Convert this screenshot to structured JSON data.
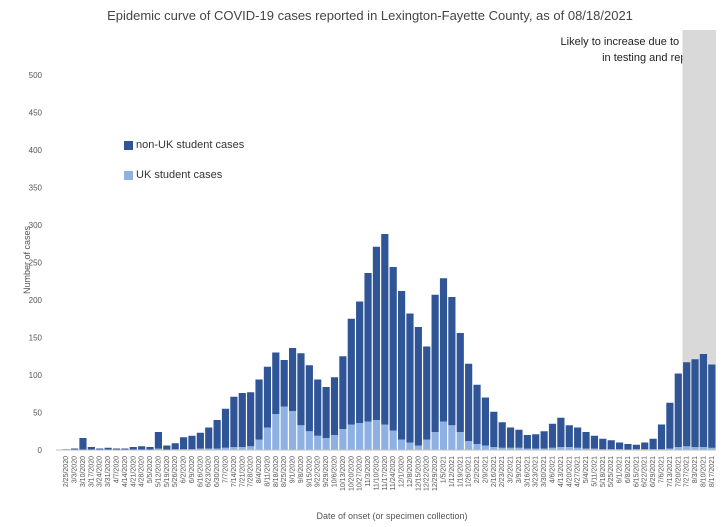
{
  "chart_data": {
    "type": "bar",
    "title": "Epidemic curve of COVID-19 cases reported in Lexington-Fayette County, as of 08/18/2021",
    "xlabel": "Date of onset (or specimen collection)",
    "ylabel": "Number of cases",
    "ylim": [
      0,
      500
    ],
    "yticks": [
      0,
      50,
      100,
      150,
      200,
      250,
      300,
      350,
      400,
      450,
      500
    ],
    "stacked": true,
    "legend_position": "upper-left",
    "annotation": "Likely to increase due to delays in testing and reporting",
    "shaded_period": [
      "7/27/2021",
      "8/17/2021"
    ],
    "x_tick_labels": [
      "2/25/2020",
      "3/3/2020",
      "3/10/2020",
      "3/17/2020",
      "3/24/2020",
      "3/31/2020",
      "4/7/2020",
      "4/14/2020",
      "4/21/2020",
      "4/28/2020",
      "5/5/2020",
      "5/12/2020",
      "5/19/2020",
      "5/26/2020",
      "6/2/2020",
      "6/9/2020",
      "6/16/2020",
      "6/23/2020",
      "6/30/2020",
      "7/7/2020",
      "7/14/2020",
      "7/21/2020",
      "7/28/2020",
      "8/4/2020",
      "8/11/2020",
      "8/18/2020",
      "8/25/2020",
      "9/1/2020",
      "9/8/2020",
      "9/15/2020",
      "9/22/2020",
      "9/29/2020",
      "10/6/2020",
      "10/13/2020",
      "10/20/2020",
      "10/27/2020",
      "11/3/2020",
      "11/10/2020",
      "11/17/2020",
      "11/24/2020",
      "12/1/2020",
      "12/8/2020",
      "12/15/2020",
      "12/22/2020",
      "12/29/2020",
      "1/5/2021",
      "1/12/2021",
      "1/19/2021",
      "1/26/2021",
      "2/2/2021",
      "2/9/2021",
      "2/16/2021",
      "2/23/2021",
      "3/2/2021",
      "3/9/2021",
      "3/16/2021",
      "3/23/2021",
      "3/30/2021",
      "4/6/2021",
      "4/13/2021",
      "4/20/2021",
      "4/27/2021",
      "5/4/2021",
      "5/11/2021",
      "5/18/2021",
      "5/25/2021",
      "6/1/2021",
      "6/8/2021",
      "6/15/2021",
      "6/22/2021",
      "6/29/2021",
      "7/6/2021",
      "7/13/2021",
      "7/20/2021",
      "7/27/2021",
      "8/3/2021",
      "8/10/2021",
      "8/17/2021"
    ],
    "x_week_starts": [
      "2/25/2020",
      "3/3/2020",
      "3/10/2020",
      "3/17/2020",
      "3/24/2020",
      "3/31/2020",
      "4/7/2020",
      "4/14/2020",
      "4/21/2020",
      "4/28/2020",
      "5/5/2020",
      "5/12/2020",
      "5/19/2020",
      "5/26/2020",
      "6/2/2020",
      "6/9/2020",
      "6/16/2020",
      "6/23/2020",
      "6/30/2020",
      "7/7/2020",
      "7/14/2020",
      "7/21/2020",
      "7/28/2020",
      "8/4/2020",
      "8/11/2020",
      "8/18/2020",
      "8/25/2020",
      "9/1/2020",
      "9/8/2020",
      "9/15/2020",
      "9/22/2020",
      "9/29/2020",
      "10/6/2020",
      "10/13/2020",
      "10/20/2020",
      "10/27/2020",
      "11/3/2020",
      "11/10/2020",
      "11/17/2020",
      "11/24/2020",
      "12/1/2020",
      "12/8/2020",
      "12/15/2020",
      "12/22/2020",
      "12/29/2020",
      "1/5/2021",
      "1/12/2021",
      "1/19/2021",
      "1/26/2021",
      "2/2/2021",
      "2/9/2021",
      "2/16/2021",
      "2/23/2021",
      "3/2/2021",
      "3/9/2021",
      "3/16/2021",
      "3/23/2021",
      "3/30/2021",
      "4/6/2021",
      "4/13/2021",
      "4/20/2021",
      "4/27/2021",
      "5/4/2021",
      "5/11/2021",
      "5/18/2021",
      "5/25/2021",
      "6/1/2021",
      "6/8/2021",
      "6/15/2021",
      "6/22/2021",
      "6/29/2021",
      "7/6/2021",
      "7/13/2021",
      "7/20/2021",
      "7/27/2021",
      "8/3/2021",
      "8/10/2021",
      "8/17/2021"
    ],
    "series": [
      {
        "name": "non-UK student cases",
        "color": "#2f5597",
        "values": [
          1,
          2,
          16,
          4,
          2,
          3,
          2,
          2,
          4,
          5,
          4,
          22,
          6,
          8,
          16,
          18,
          21,
          28,
          38,
          52,
          67,
          72,
          72,
          80,
          81,
          82,
          62,
          84,
          96,
          88,
          75,
          68,
          77,
          97,
          141,
          162,
          198,
          231,
          254,
          218,
          198,
          172,
          158,
          124,
          183,
          191,
          171,
          132,
          103,
          79,
          64,
          47,
          34,
          27,
          24,
          18,
          19,
          23,
          32,
          39,
          29,
          27,
          22,
          17,
          14,
          12,
          9,
          8,
          6,
          9,
          14,
          33,
          61,
          98,
          112,
          117,
          124,
          111
        ]
      },
      {
        "name": "UK student cases",
        "color": "#8fb0e3",
        "values": [
          0,
          0,
          0,
          0,
          0,
          0,
          0,
          0,
          0,
          0,
          0,
          2,
          0,
          1,
          1,
          1,
          2,
          2,
          2,
          3,
          4,
          4,
          5,
          14,
          30,
          48,
          58,
          52,
          33,
          25,
          19,
          16,
          20,
          28,
          34,
          36,
          38,
          40,
          34,
          26,
          14,
          10,
          6,
          14,
          24,
          38,
          33,
          24,
          12,
          8,
          6,
          4,
          3,
          3,
          3,
          2,
          2,
          2,
          3,
          4,
          4,
          3,
          2,
          2,
          1,
          1,
          1,
          0,
          1,
          1,
          1,
          1,
          2,
          4,
          5,
          4,
          4,
          3
        ]
      }
    ]
  }
}
